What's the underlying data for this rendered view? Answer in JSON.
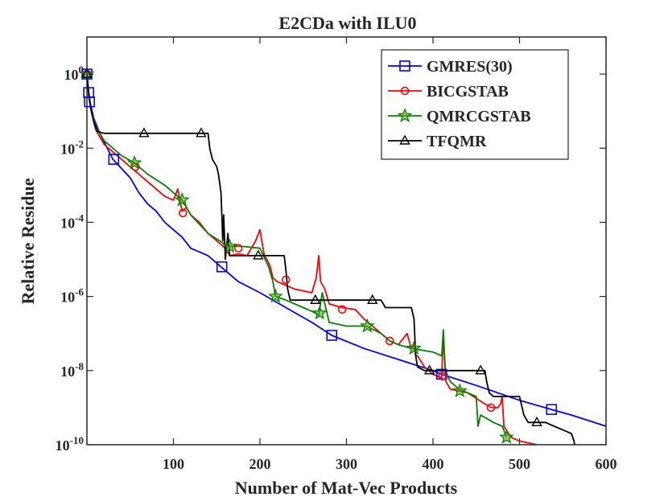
{
  "chart_data": {
    "type": "line",
    "title": "E2CDa with ILU0",
    "xlabel": "Number of Mat-Vec Products",
    "ylabel": "Relative Residue",
    "xlim": [
      0,
      600
    ],
    "ylim_log10": [
      -10,
      1
    ],
    "y_scale": "log",
    "x_ticks": [
      100,
      200,
      300,
      400,
      500,
      600
    ],
    "y_ticks": [
      {
        "exp": 0,
        "base": "10",
        "sup": "0"
      },
      {
        "exp": -2,
        "base": "10",
        "sup": "-2"
      },
      {
        "exp": -4,
        "base": "10",
        "sup": "-4"
      },
      {
        "exp": -6,
        "base": "10",
        "sup": "-6"
      },
      {
        "exp": -8,
        "base": "10",
        "sup": "-8"
      },
      {
        "exp": -10,
        "base": "10",
        "sup": "-10"
      }
    ],
    "legend_position": "top-right",
    "series": [
      {
        "name": "GMRES(30)",
        "color": "#0000ff",
        "marker": "square",
        "x": [
          0,
          2,
          4,
          8,
          15,
          30,
          50,
          60,
          70,
          80,
          90,
          100,
          110,
          120,
          130,
          140,
          155,
          175,
          200,
          230,
          260,
          283,
          320,
          360,
          400,
          410,
          450,
          500,
          537,
          560,
          600
        ],
        "log10y": [
          0,
          -0.5,
          -0.8,
          -1.2,
          -1.6,
          -2.3,
          -2.8,
          -3.2,
          -3.5,
          -3.7,
          -4.0,
          -4.2,
          -4.4,
          -4.7,
          -4.8,
          -4.9,
          -5.2,
          -5.6,
          -5.9,
          -6.3,
          -6.7,
          -7.05,
          -7.4,
          -7.7,
          -8.0,
          -8.1,
          -8.4,
          -8.8,
          -9.05,
          -9.2,
          -9.5
        ],
        "marker_x": [
          0,
          2,
          3,
          31,
          156,
          283,
          410,
          537
        ],
        "marker_log10y": [
          0,
          -0.5,
          -0.75,
          -2.3,
          -5.2,
          -7.05,
          -8.1,
          -9.05
        ]
      },
      {
        "name": "BICGSTAB",
        "color": "#ff0000",
        "marker": "circle",
        "x": [
          0,
          2,
          5,
          10,
          20,
          30,
          40,
          55,
          70,
          90,
          100,
          105,
          110,
          115,
          120,
          130,
          140,
          150,
          160,
          165,
          175,
          185,
          195,
          200,
          205,
          208,
          212,
          215,
          220,
          230,
          240,
          250,
          260,
          265,
          268,
          270,
          275,
          280,
          295,
          310,
          320,
          330,
          340,
          350,
          360,
          370,
          375,
          378,
          380,
          382,
          390,
          400,
          410,
          412,
          415,
          420,
          440,
          460,
          468,
          475,
          478,
          480,
          482,
          490,
          500,
          520,
          535
        ],
        "log10y": [
          0,
          -0.6,
          -1.0,
          -1.5,
          -1.9,
          -2.1,
          -2.3,
          -2.6,
          -2.9,
          -3.3,
          -3.4,
          -3.1,
          -3.7,
          -3.6,
          -3.8,
          -4.0,
          -4.3,
          -4.5,
          -4.7,
          -4.9,
          -4.85,
          -4.9,
          -4.5,
          -4.2,
          -4.9,
          -5.0,
          -5.2,
          -5.5,
          -5.6,
          -5.7,
          -5.8,
          -5.85,
          -5.9,
          -5.5,
          -4.9,
          -5.6,
          -5.8,
          -6.2,
          -6.3,
          -6.35,
          -6.6,
          -6.8,
          -7.0,
          -7.2,
          -7.3,
          -7.0,
          -7.4,
          -7.3,
          -7.6,
          -7.6,
          -7.9,
          -8.1,
          -8.2,
          -7.0,
          -8.3,
          -8.5,
          -8.6,
          -8.9,
          -9.0,
          -9.0,
          -8.9,
          -8.7,
          -9.5,
          -9.8,
          -9.9,
          -10.0,
          -10.2
        ],
        "marker_x": [
          0,
          56,
          111,
          175,
          230,
          295,
          350,
          411,
          467
        ],
        "marker_log10y": [
          0,
          -2.5,
          -3.75,
          -4.7,
          -5.55,
          -6.35,
          -7.2,
          -8.15,
          -9.0
        ]
      },
      {
        "name": "QMRCGSTAB",
        "color": "#008000",
        "marker": "star",
        "x": [
          0,
          2,
          5,
          10,
          20,
          30,
          40,
          55,
          70,
          90,
          100,
          110,
          120,
          140,
          160,
          165,
          180,
          200,
          210,
          215,
          218,
          230,
          250,
          260,
          268,
          272,
          280,
          300,
          320,
          323,
          340,
          350,
          360,
          375,
          400,
          410,
          412,
          414,
          420,
          430,
          440,
          450,
          452,
          455,
          470,
          480,
          485
        ],
        "log10y": [
          0,
          -0.6,
          -1.0,
          -1.4,
          -1.8,
          -2.0,
          -2.2,
          -2.4,
          -2.7,
          -3.0,
          -3.2,
          -3.4,
          -3.8,
          -4.3,
          -4.6,
          -4.65,
          -4.65,
          -4.7,
          -5.2,
          -5.6,
          -6.0,
          -6.1,
          -6.3,
          -6.4,
          -6.5,
          -5.9,
          -6.7,
          -6.8,
          -6.8,
          -6.8,
          -7.0,
          -7.2,
          -7.3,
          -7.4,
          -7.5,
          -7.6,
          -6.9,
          -8.0,
          -8.3,
          -8.5,
          -8.6,
          -8.7,
          -9.5,
          -9.2,
          -9.4,
          -9.5,
          -9.8
        ],
        "marker_x": [
          0,
          55,
          110,
          165,
          218,
          269,
          324,
          378,
          431,
          485
        ],
        "marker_log10y": [
          0,
          -2.4,
          -3.4,
          -4.65,
          -6.0,
          -6.45,
          -6.8,
          -7.4,
          -8.55,
          -9.8
        ]
      },
      {
        "name": "TFQMR",
        "color": "#000000",
        "marker": "triangle",
        "x": [
          0,
          2,
          5,
          8,
          12,
          20,
          40,
          60,
          100,
          140,
          142,
          145,
          150,
          152,
          155,
          157,
          158,
          160,
          163,
          165,
          170,
          200,
          228,
          230,
          232,
          235,
          260,
          300,
          340,
          345,
          375,
          378,
          380,
          382,
          390,
          400,
          450,
          460,
          462,
          465,
          470,
          480,
          500,
          505,
          510,
          515,
          520,
          530,
          540,
          550,
          560,
          563,
          565
        ],
        "log10y": [
          0,
          -0.5,
          -1.0,
          -1.3,
          -1.55,
          -1.6,
          -1.6,
          -1.6,
          -1.6,
          -1.6,
          -2.0,
          -2.3,
          -2.5,
          -2.7,
          -3.2,
          -4.5,
          -3.8,
          -5.0,
          -4.3,
          -4.9,
          -4.9,
          -4.9,
          -4.9,
          -5.3,
          -5.8,
          -6.1,
          -6.1,
          -6.1,
          -6.1,
          -6.3,
          -6.3,
          -6.6,
          -7.6,
          -7.9,
          -8.0,
          -8.0,
          -8.0,
          -8.0,
          -8.3,
          -8.6,
          -8.7,
          -8.7,
          -8.7,
          -9.2,
          -9.4,
          -9.4,
          -9.4,
          -9.4,
          -9.5,
          -9.6,
          -9.7,
          -9.9,
          -10.2
        ],
        "marker_x": [
          0,
          66,
          132,
          198,
          264,
          330,
          396,
          455,
          520
        ],
        "marker_log10y": [
          0,
          -1.6,
          -1.6,
          -4.9,
          -6.1,
          -6.1,
          -8.0,
          -8.0,
          -9.4
        ]
      }
    ]
  }
}
